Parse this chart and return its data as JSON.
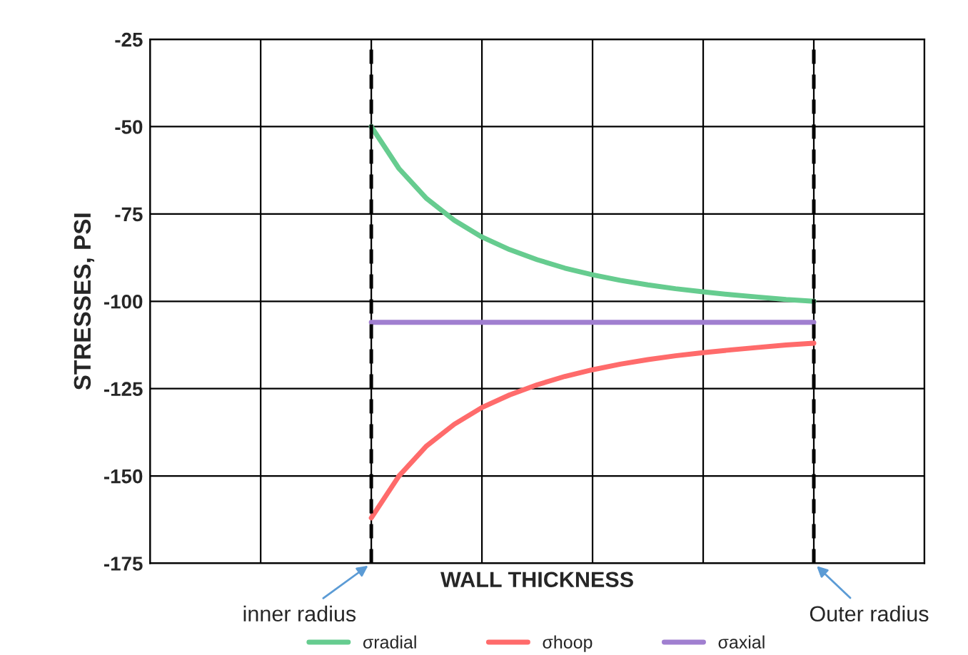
{
  "chart_data": {
    "type": "line",
    "xlabel": "WALL THICKNESS",
    "ylabel": "STRESSES, PSI",
    "categories": [
      null,
      null,
      null,
      null,
      null,
      null,
      null,
      null,
      null,
      null,
      null,
      null,
      null,
      null,
      null,
      null,
      null,
      null,
      null,
      null,
      null,
      null,
      null,
      null,
      null,
      null,
      null,
      null,
      null
    ],
    "ylim": [
      -175,
      -25
    ],
    "yticks": [
      -175,
      -150,
      -125,
      -100,
      -75,
      -50,
      -25
    ],
    "tick_labels": "y",
    "grid": true,
    "legend": "bottom",
    "marker": "none",
    "line_style": "solid",
    "series": [
      {
        "name": "σradial",
        "color": "#66cc8f",
        "values": [
          null,
          null,
          null,
          null,
          null,
          null,
          null,
          null,
          -50,
          -62,
          -70.6,
          -76.8,
          -81.6,
          -85.2,
          -88.1,
          -90.5,
          -92.4,
          -94.0,
          -95.3,
          -96.4,
          -97.3,
          -98.1,
          -98.8,
          -99.5,
          -100,
          null,
          null,
          null,
          null
        ]
      },
      {
        "name": "σhoop",
        "color": "#ff6b6b",
        "values": [
          null,
          null,
          null,
          null,
          null,
          null,
          null,
          null,
          -162,
          -150,
          -141.4,
          -135.2,
          -130.4,
          -126.8,
          -123.9,
          -121.5,
          -119.6,
          -118.0,
          -116.7,
          -115.6,
          -114.7,
          -113.9,
          -113.2,
          -112.5,
          -112,
          null,
          null,
          null,
          null
        ]
      },
      {
        "name": "σaxial",
        "color": "#a07fd0",
        "values": [
          null,
          null,
          null,
          null,
          null,
          null,
          null,
          null,
          -106,
          -106,
          -106,
          -106,
          -106,
          -106,
          -106,
          -106,
          -106,
          -106,
          -106,
          -106,
          -106,
          -106,
          -106,
          -106,
          -106,
          null,
          null,
          null,
          null
        ]
      }
    ],
    "annotations": [
      "inner radius",
      "Outer radius"
    ]
  }
}
